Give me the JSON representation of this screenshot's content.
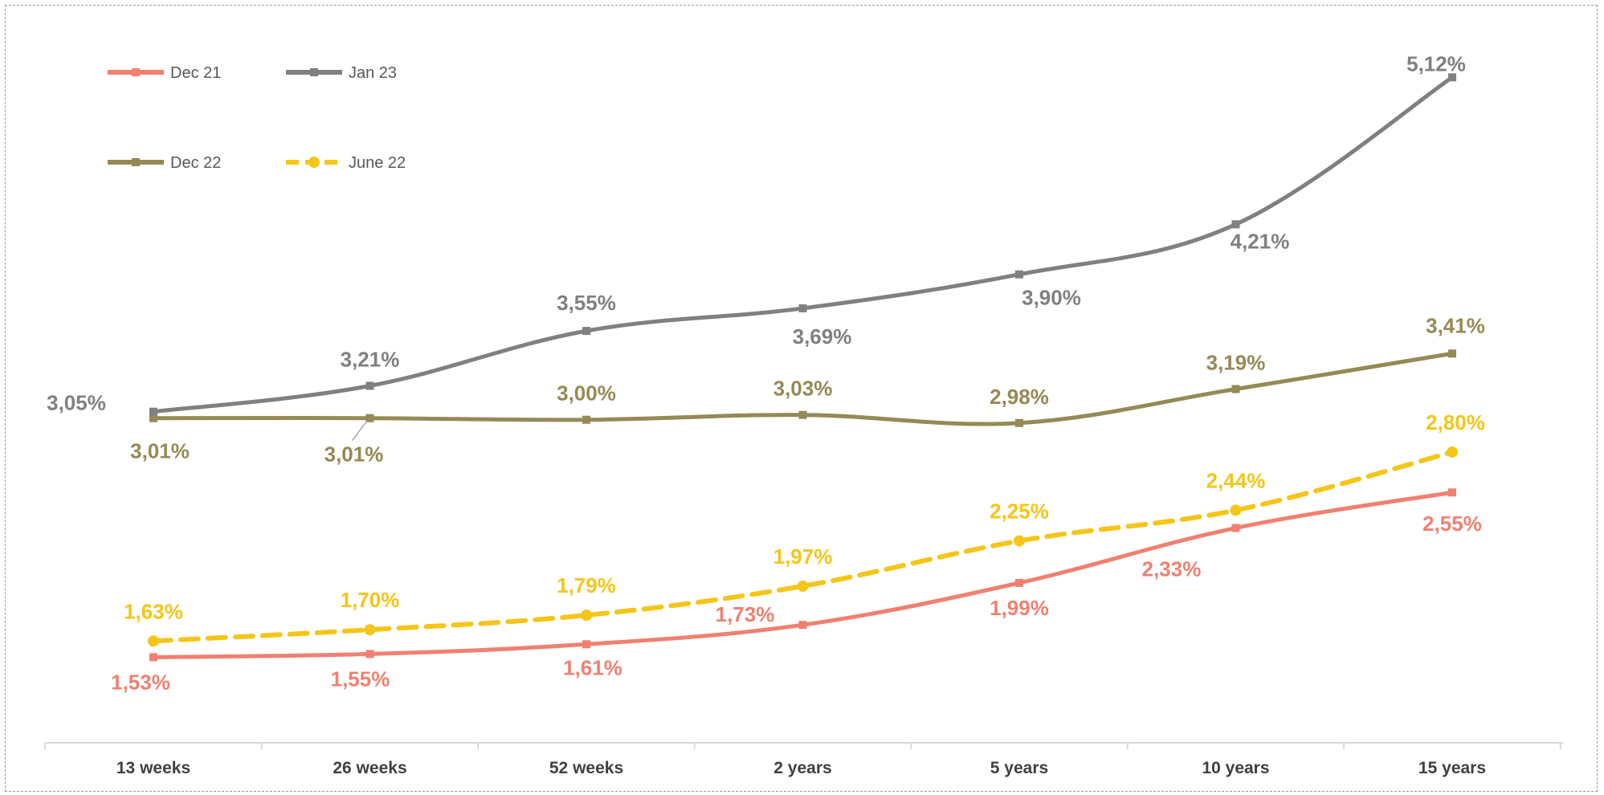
{
  "chart_data": {
    "type": "line",
    "title": "",
    "xlabel": "",
    "ylabel": "",
    "categories": [
      "13 weeks",
      "26 weeks",
      "52 weeks",
      "2 years",
      "5 years",
      "10 years",
      "15 years"
    ],
    "ylim": [
      1.0,
      5.4
    ],
    "grid": false,
    "legend_position": "top-left",
    "series": [
      {
        "name": "Dec 21",
        "values": [
          1.53,
          1.55,
          1.61,
          1.73,
          1.99,
          2.33,
          2.55
        ],
        "labels": [
          "1,53%",
          "1,55%",
          "1,61%",
          "1,73%",
          "1,99%",
          "2,33%",
          "2,55%"
        ],
        "color": "#F08070",
        "dashed": false,
        "marker": "square"
      },
      {
        "name": "Jan 23",
        "values": [
          3.05,
          3.21,
          3.55,
          3.69,
          3.9,
          4.21,
          5.12
        ],
        "labels": [
          "3,05%",
          "3,21%",
          "3,55%",
          "3,69%",
          "3,90%",
          "4,21%",
          "5,12%"
        ],
        "color": "#808080",
        "dashed": false,
        "marker": "square"
      },
      {
        "name": "Dec 22",
        "values": [
          3.01,
          3.01,
          3.0,
          3.03,
          2.98,
          3.19,
          3.41
        ],
        "labels": [
          "3,01%",
          "3,01%",
          "3,00%",
          "3,03%",
          "2,98%",
          "3,19%",
          "3,41%"
        ],
        "color": "#958A55",
        "dashed": false,
        "marker": "square"
      },
      {
        "name": "June 22",
        "values": [
          1.63,
          1.7,
          1.79,
          1.97,
          2.25,
          2.44,
          2.8
        ],
        "labels": [
          "1,63%",
          "1,70%",
          "1,79%",
          "1,97%",
          "2,25%",
          "2,44%",
          "2,80%"
        ],
        "color": "#F5C518",
        "dashed": true,
        "marker": "circle"
      }
    ]
  }
}
